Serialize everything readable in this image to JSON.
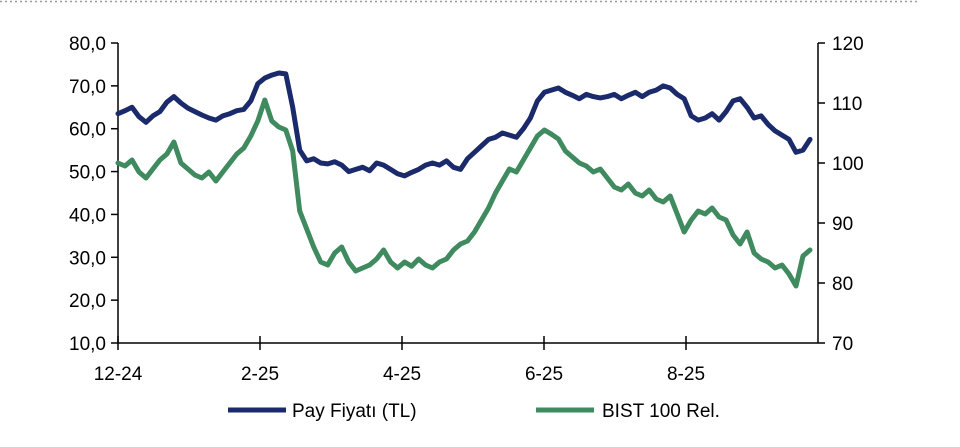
{
  "chart_data": {
    "type": "line",
    "dual_axis": true,
    "x_ticks": [
      "12-24",
      "2-25",
      "4-25",
      "6-25",
      "8-25"
    ],
    "y_left": {
      "range": [
        10,
        80
      ],
      "ticks": [
        "10,0",
        "20,0",
        "30,0",
        "40,0",
        "50,0",
        "60,0",
        "70,0",
        "80,0"
      ],
      "tick_values": [
        10,
        20,
        30,
        40,
        50,
        60,
        70,
        80
      ]
    },
    "y_right": {
      "range": [
        70,
        120
      ],
      "ticks": [
        "70",
        "80",
        "90",
        "100",
        "110",
        "120"
      ],
      "tick_values": [
        70,
        80,
        90,
        100,
        110,
        120
      ]
    },
    "grid": false,
    "legend_position": "bottom",
    "series": [
      {
        "name": "Pay Fiyatı (TL)",
        "axis": "left",
        "color": "#1b2a6b",
        "points": [
          [
            "12-24",
            63.5
          ],
          [
            "12-24",
            64.2
          ],
          [
            "12-24",
            65.0
          ],
          [
            "12-24",
            62.8
          ],
          [
            "12-24",
            61.5
          ],
          [
            "12-24",
            63.0
          ],
          [
            "12-24",
            64.0
          ],
          [
            "12-24",
            66.2
          ],
          [
            "12-24",
            67.5
          ],
          [
            "12-24",
            66.0
          ],
          [
            "1-25",
            64.8
          ],
          [
            "1-25",
            64.0
          ],
          [
            "1-25",
            63.2
          ],
          [
            "1-25",
            62.5
          ],
          [
            "1-25",
            62.0
          ],
          [
            "1-25",
            63.0
          ],
          [
            "1-25",
            63.5
          ],
          [
            "1-25",
            64.2
          ],
          [
            "1-25",
            64.5
          ],
          [
            "1-25",
            66.5
          ],
          [
            "2-25",
            70.5
          ],
          [
            "2-25",
            71.8
          ],
          [
            "2-25",
            72.5
          ],
          [
            "2-25",
            73.0
          ],
          [
            "2-25",
            72.8
          ],
          [
            "2-25",
            65.0
          ],
          [
            "2-25",
            55.0
          ],
          [
            "2-25",
            52.5
          ],
          [
            "2-25",
            53.0
          ],
          [
            "2-25",
            52.0
          ],
          [
            "3-25",
            51.8
          ],
          [
            "3-25",
            52.3
          ],
          [
            "3-25",
            51.5
          ],
          [
            "3-25",
            50.0
          ],
          [
            "3-25",
            50.5
          ],
          [
            "3-25",
            51.0
          ],
          [
            "3-25",
            50.2
          ],
          [
            "3-25",
            52.0
          ],
          [
            "3-25",
            51.5
          ],
          [
            "3-25",
            50.5
          ],
          [
            "4-25",
            49.5
          ],
          [
            "4-25",
            49.0
          ],
          [
            "4-25",
            49.8
          ],
          [
            "4-25",
            50.5
          ],
          [
            "4-25",
            51.5
          ],
          [
            "4-25",
            52.0
          ],
          [
            "4-25",
            51.5
          ],
          [
            "4-25",
            52.5
          ],
          [
            "4-25",
            51.0
          ],
          [
            "4-25",
            50.5
          ],
          [
            "5-25",
            53.0
          ],
          [
            "5-25",
            54.5
          ],
          [
            "5-25",
            56.0
          ],
          [
            "5-25",
            57.5
          ],
          [
            "5-25",
            58.0
          ],
          [
            "5-25",
            59.0
          ],
          [
            "5-25",
            58.5
          ],
          [
            "5-25",
            58.0
          ],
          [
            "5-25",
            60.0
          ],
          [
            "5-25",
            62.5
          ],
          [
            "6-25",
            66.5
          ],
          [
            "6-25",
            68.5
          ],
          [
            "6-25",
            69.0
          ],
          [
            "6-25",
            69.5
          ],
          [
            "6-25",
            68.5
          ],
          [
            "6-25",
            67.8
          ],
          [
            "6-25",
            67.0
          ],
          [
            "6-25",
            68.0
          ],
          [
            "6-25",
            67.5
          ],
          [
            "6-25",
            67.2
          ],
          [
            "7-25",
            67.5
          ],
          [
            "7-25",
            68.0
          ],
          [
            "7-25",
            67.0
          ],
          [
            "7-25",
            67.8
          ],
          [
            "7-25",
            68.5
          ],
          [
            "7-25",
            67.5
          ],
          [
            "7-25",
            68.5
          ],
          [
            "7-25",
            69.0
          ],
          [
            "7-25",
            70.0
          ],
          [
            "7-25",
            69.5
          ],
          [
            "8-25",
            68.0
          ],
          [
            "8-25",
            67.0
          ],
          [
            "8-25",
            63.0
          ],
          [
            "8-25",
            62.0
          ],
          [
            "8-25",
            62.5
          ],
          [
            "8-25",
            63.5
          ],
          [
            "8-25",
            62.0
          ],
          [
            "8-25",
            64.0
          ],
          [
            "8-25",
            66.5
          ],
          [
            "8-25",
            67.0
          ],
          [
            "9-25",
            65.0
          ],
          [
            "9-25",
            62.5
          ],
          [
            "9-25",
            63.0
          ],
          [
            "9-25",
            61.0
          ],
          [
            "9-25",
            59.5
          ],
          [
            "9-25",
            58.5
          ],
          [
            "9-25",
            57.5
          ],
          [
            "9-25",
            54.5
          ],
          [
            "9-25",
            55.0
          ],
          [
            "9-25",
            57.5
          ]
        ]
      },
      {
        "name": "BIST 100 Rel.",
        "axis": "right",
        "color": "#3f8a5f",
        "points": [
          [
            "12-24",
            100.0
          ],
          [
            "12-24",
            99.5
          ],
          [
            "12-24",
            100.5
          ],
          [
            "12-24",
            98.5
          ],
          [
            "12-24",
            97.5
          ],
          [
            "12-24",
            99.0
          ],
          [
            "12-24",
            100.5
          ],
          [
            "12-24",
            101.5
          ],
          [
            "12-24",
            103.5
          ],
          [
            "12-24",
            100.0
          ],
          [
            "1-25",
            99.0
          ],
          [
            "1-25",
            98.0
          ],
          [
            "1-25",
            97.5
          ],
          [
            "1-25",
            98.5
          ],
          [
            "1-25",
            97.0
          ],
          [
            "1-25",
            98.5
          ],
          [
            "1-25",
            100.0
          ],
          [
            "1-25",
            101.5
          ],
          [
            "1-25",
            102.5
          ],
          [
            "1-25",
            104.5
          ],
          [
            "2-25",
            107.0
          ],
          [
            "2-25",
            110.5
          ],
          [
            "2-25",
            107.0
          ],
          [
            "2-25",
            106.0
          ],
          [
            "2-25",
            105.5
          ],
          [
            "2-25",
            102.0
          ],
          [
            "2-25",
            92.0
          ],
          [
            "2-25",
            89.0
          ],
          [
            "2-25",
            86.0
          ],
          [
            "2-25",
            83.5
          ],
          [
            "3-25",
            83.0
          ],
          [
            "3-25",
            85.0
          ],
          [
            "3-25",
            86.0
          ],
          [
            "3-25",
            83.5
          ],
          [
            "3-25",
            82.0
          ],
          [
            "3-25",
            82.5
          ],
          [
            "3-25",
            83.0
          ],
          [
            "3-25",
            84.0
          ],
          [
            "3-25",
            85.5
          ],
          [
            "3-25",
            83.5
          ],
          [
            "4-25",
            82.5
          ],
          [
            "4-25",
            83.5
          ],
          [
            "4-25",
            82.8
          ],
          [
            "4-25",
            84.0
          ],
          [
            "4-25",
            83.0
          ],
          [
            "4-25",
            82.5
          ],
          [
            "4-25",
            83.5
          ],
          [
            "4-25",
            84.0
          ],
          [
            "4-25",
            85.5
          ],
          [
            "4-25",
            86.5
          ],
          [
            "5-25",
            87.0
          ],
          [
            "5-25",
            88.5
          ],
          [
            "5-25",
            90.5
          ],
          [
            "5-25",
            92.5
          ],
          [
            "5-25",
            95.0
          ],
          [
            "5-25",
            97.0
          ],
          [
            "5-25",
            99.0
          ],
          [
            "5-25",
            98.5
          ],
          [
            "5-25",
            100.5
          ],
          [
            "5-25",
            102.5
          ],
          [
            "6-25",
            104.5
          ],
          [
            "6-25",
            105.5
          ],
          [
            "6-25",
            104.8
          ],
          [
            "6-25",
            104.0
          ],
          [
            "6-25",
            102.0
          ],
          [
            "6-25",
            101.0
          ],
          [
            "6-25",
            100.0
          ],
          [
            "6-25",
            99.5
          ],
          [
            "6-25",
            98.5
          ],
          [
            "6-25",
            99.0
          ],
          [
            "7-25",
            97.5
          ],
          [
            "7-25",
            96.0
          ],
          [
            "7-25",
            95.5
          ],
          [
            "7-25",
            96.5
          ],
          [
            "7-25",
            95.0
          ],
          [
            "7-25",
            94.5
          ],
          [
            "7-25",
            95.5
          ],
          [
            "7-25",
            94.0
          ],
          [
            "7-25",
            93.5
          ],
          [
            "7-25",
            94.5
          ],
          [
            "8-25",
            91.5
          ],
          [
            "8-25",
            88.5
          ],
          [
            "8-25",
            90.5
          ],
          [
            "8-25",
            92.0
          ],
          [
            "8-25",
            91.5
          ],
          [
            "8-25",
            92.5
          ],
          [
            "8-25",
            91.0
          ],
          [
            "8-25",
            90.5
          ],
          [
            "8-25",
            88.0
          ],
          [
            "8-25",
            86.5
          ],
          [
            "9-25",
            88.5
          ],
          [
            "9-25",
            85.0
          ],
          [
            "9-25",
            84.0
          ],
          [
            "9-25",
            83.5
          ],
          [
            "9-25",
            82.5
          ],
          [
            "9-25",
            83.0
          ],
          [
            "9-25",
            81.5
          ],
          [
            "9-25",
            79.5
          ],
          [
            "9-25",
            84.5
          ],
          [
            "9-25",
            85.5
          ]
        ]
      }
    ]
  }
}
